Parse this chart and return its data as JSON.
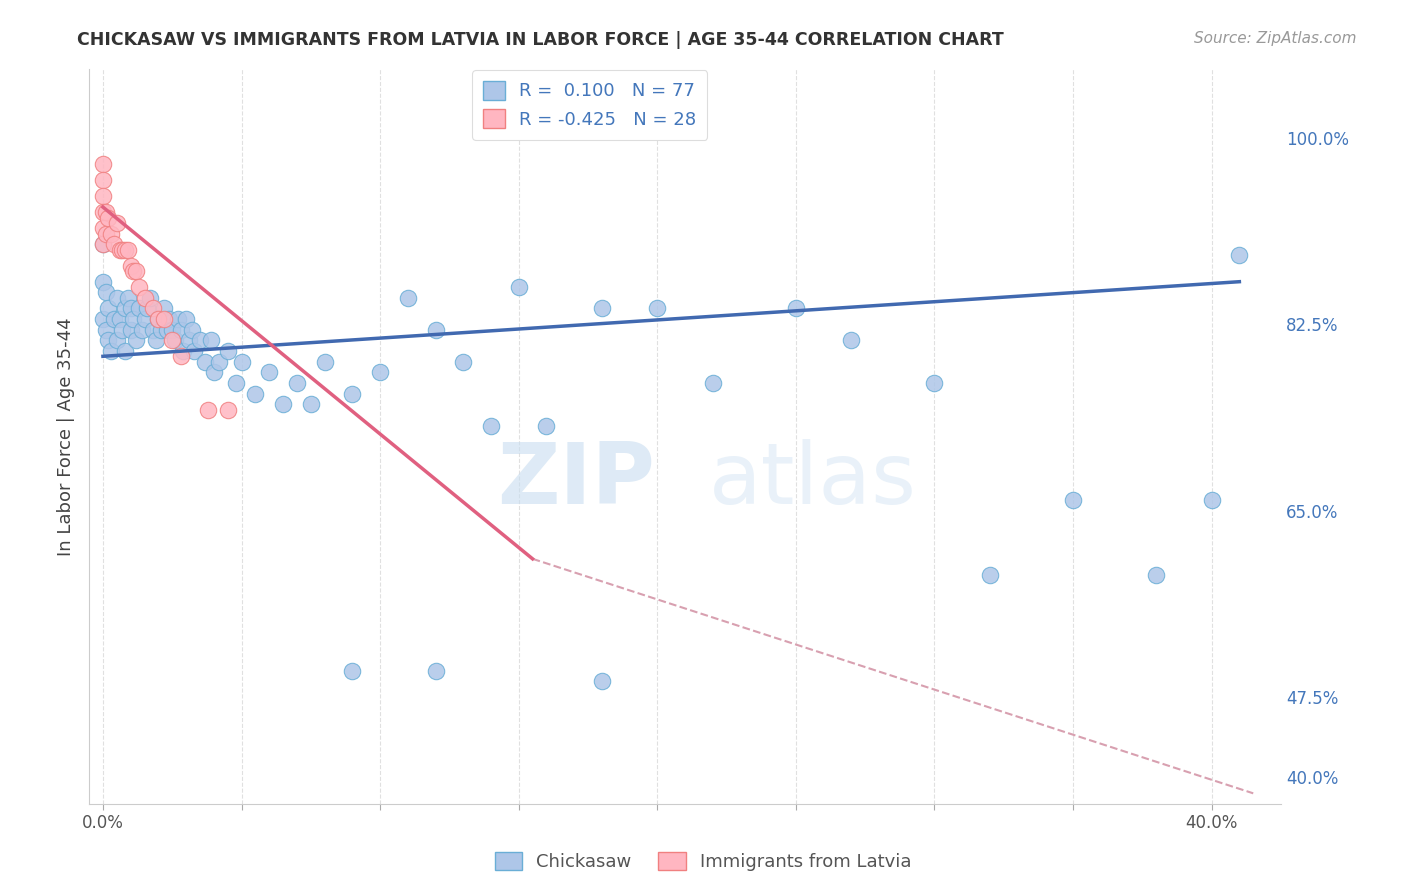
{
  "title": "CHICKASAW VS IMMIGRANTS FROM LATVIA IN LABOR FORCE | AGE 35-44 CORRELATION CHART",
  "source": "Source: ZipAtlas.com",
  "ylabel": "In Labor Force | Age 35-44",
  "xlim": [
    -0.005,
    0.425
  ],
  "ylim": [
    0.375,
    1.065
  ],
  "xtick_positions": [
    0.0,
    0.05,
    0.1,
    0.15,
    0.2,
    0.25,
    0.3,
    0.35,
    0.4
  ],
  "xticklabels": [
    "0.0%",
    "",
    "",
    "",
    "",
    "",
    "",
    "",
    "40.0%"
  ],
  "right_yticks": [
    1.0,
    0.825,
    0.65,
    0.475,
    0.4
  ],
  "right_yticklabels": [
    "100.0%",
    "82.5%",
    "65.0%",
    "47.5%",
    "40.0%"
  ],
  "grid_color": "#e0e0e0",
  "background_color": "#ffffff",
  "chickasaw_color": "#aec6e8",
  "chickasaw_edge_color": "#6aaed6",
  "latvia_color": "#ffb6c1",
  "latvia_edge_color": "#f08080",
  "legend_R_blue": "0.100",
  "legend_N_blue": "77",
  "legend_R_pink": "-0.425",
  "legend_N_pink": "28",
  "trend_blue_color": "#4169b0",
  "trend_pink_color": "#e06080",
  "trend_dashed_color": "#d8a0b0",
  "watermark_zip": "ZIP",
  "watermark_atlas": "atlas",
  "blue_trend_x": [
    0.0,
    0.41
  ],
  "blue_trend_y": [
    0.795,
    0.865
  ],
  "pink_trend_x": [
    0.0,
    0.155
  ],
  "pink_trend_y": [
    0.935,
    0.605
  ],
  "dashed_trend_x": [
    0.155,
    0.415
  ],
  "dashed_trend_y": [
    0.605,
    0.385
  ],
  "chickasaw_x": [
    0.0,
    0.0,
    0.0,
    0.001,
    0.001,
    0.002,
    0.002,
    0.003,
    0.004,
    0.005,
    0.005,
    0.006,
    0.007,
    0.008,
    0.008,
    0.009,
    0.01,
    0.01,
    0.011,
    0.012,
    0.013,
    0.014,
    0.015,
    0.016,
    0.017,
    0.018,
    0.019,
    0.02,
    0.021,
    0.022,
    0.023,
    0.024,
    0.025,
    0.026,
    0.027,
    0.028,
    0.029,
    0.03,
    0.031,
    0.032,
    0.033,
    0.035,
    0.037,
    0.039,
    0.04,
    0.042,
    0.045,
    0.048,
    0.05,
    0.055,
    0.06,
    0.065,
    0.07,
    0.075,
    0.08,
    0.09,
    0.1,
    0.11,
    0.12,
    0.13,
    0.14,
    0.15,
    0.16,
    0.18,
    0.2,
    0.22,
    0.25,
    0.27,
    0.3,
    0.32,
    0.35,
    0.38,
    0.4,
    0.41,
    0.09,
    0.12,
    0.18
  ],
  "chickasaw_y": [
    0.83,
    0.865,
    0.9,
    0.82,
    0.855,
    0.81,
    0.84,
    0.8,
    0.83,
    0.85,
    0.81,
    0.83,
    0.82,
    0.84,
    0.8,
    0.85,
    0.82,
    0.84,
    0.83,
    0.81,
    0.84,
    0.82,
    0.83,
    0.84,
    0.85,
    0.82,
    0.81,
    0.83,
    0.82,
    0.84,
    0.82,
    0.83,
    0.82,
    0.81,
    0.83,
    0.82,
    0.8,
    0.83,
    0.81,
    0.82,
    0.8,
    0.81,
    0.79,
    0.81,
    0.78,
    0.79,
    0.8,
    0.77,
    0.79,
    0.76,
    0.78,
    0.75,
    0.77,
    0.75,
    0.79,
    0.76,
    0.78,
    0.85,
    0.82,
    0.79,
    0.73,
    0.86,
    0.73,
    0.84,
    0.84,
    0.77,
    0.84,
    0.81,
    0.77,
    0.59,
    0.66,
    0.59,
    0.66,
    0.89,
    0.5,
    0.5,
    0.49
  ],
  "latvia_x": [
    0.0,
    0.0,
    0.0,
    0.0,
    0.0,
    0.0,
    0.001,
    0.001,
    0.002,
    0.003,
    0.004,
    0.005,
    0.006,
    0.007,
    0.008,
    0.009,
    0.01,
    0.011,
    0.012,
    0.013,
    0.015,
    0.018,
    0.02,
    0.022,
    0.025,
    0.028,
    0.038,
    0.045
  ],
  "latvia_y": [
    0.975,
    0.96,
    0.945,
    0.93,
    0.915,
    0.9,
    0.93,
    0.91,
    0.925,
    0.91,
    0.9,
    0.92,
    0.895,
    0.895,
    0.895,
    0.895,
    0.88,
    0.875,
    0.875,
    0.86,
    0.85,
    0.84,
    0.83,
    0.83,
    0.81,
    0.795,
    0.745,
    0.745
  ]
}
